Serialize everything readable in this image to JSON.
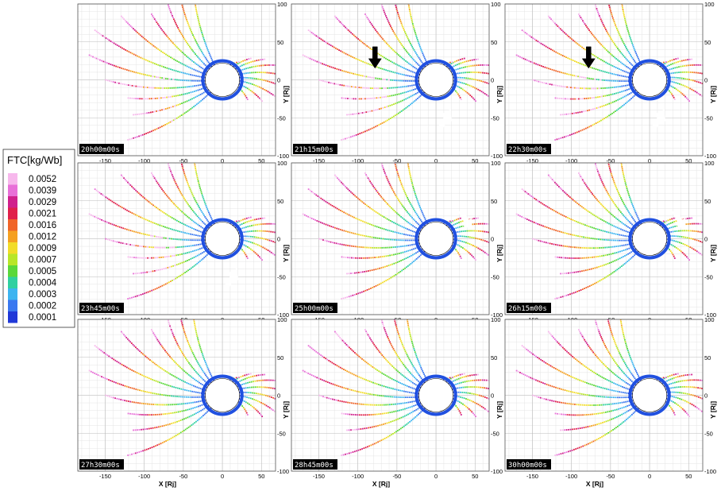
{
  "chart_data": {
    "type": "scatter",
    "colorbar": {
      "title": "FTC[kg/Wb]",
      "levels": [
        "0.0052",
        "0.0039",
        "0.0029",
        "0.0021",
        "0.0016",
        "0.0012",
        "0.0009",
        "0.0007",
        "0.0005",
        "0.0004",
        "0.0003",
        "0.0002",
        "0.0001"
      ],
      "colors": [
        "#f7b8ec",
        "#e870d8",
        "#d0208c",
        "#e0204a",
        "#f06428",
        "#f5a020",
        "#f2dc28",
        "#b8e628",
        "#5ad83a",
        "#30d0a0",
        "#3cb4f0",
        "#3a78f0",
        "#2038d8"
      ]
    },
    "xaxis": {
      "label": "X [Rj]",
      "ticks": [
        "-150",
        "-100",
        "-50",
        "0",
        "50"
      ],
      "range": [
        -185,
        68
      ]
    },
    "yaxis": {
      "label": "Y [Rj]",
      "ticks": [
        "100",
        "50",
        "0",
        "-50",
        "-100"
      ],
      "range": [
        -100,
        100
      ]
    },
    "panels": [
      {
        "time": "20h00m00s"
      },
      {
        "time": "21h15m00s",
        "arrows": [
          "black-down",
          "white-up"
        ]
      },
      {
        "time": "22h30m00s",
        "arrows": [
          "black-down",
          "white-up"
        ]
      },
      {
        "time": "23h45m00s",
        "arrows": [
          "white-up"
        ]
      },
      {
        "time": "25h00m00s",
        "arrows": [
          "white-down"
        ]
      },
      {
        "time": "26h15m00s",
        "arrows": [
          "white-down"
        ]
      },
      {
        "time": "27h30m00s"
      },
      {
        "time": "28h45m00s"
      },
      {
        "time": "30h00m00s"
      }
    ],
    "grid": true,
    "legend_position": "left"
  }
}
